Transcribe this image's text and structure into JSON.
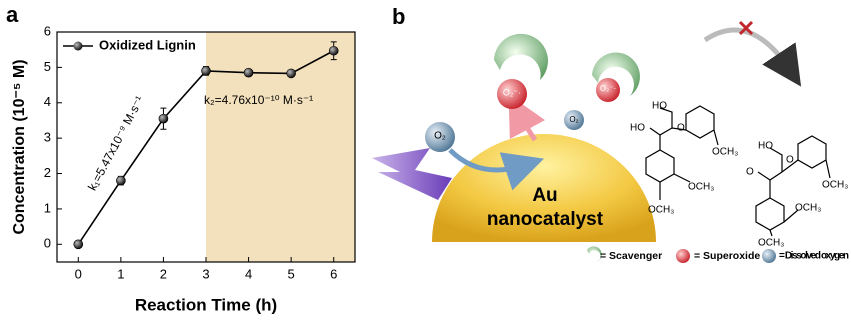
{
  "chart_data": {
    "type": "line",
    "panel_label": "a",
    "x_label": "Reaction Time (h)",
    "y_label": "Concentration (10⁻⁵ M)",
    "x": [
      0,
      1,
      2,
      3,
      4,
      5,
      6
    ],
    "series": [
      {
        "name": "Oxidized Lignin",
        "color": "#000000",
        "values": [
          0,
          1.8,
          3.55,
          4.9,
          4.85,
          4.83,
          5.47
        ],
        "errors": [
          0.05,
          0.12,
          0.3,
          0.12,
          0.05,
          0.05,
          0.25
        ]
      }
    ],
    "xlim": [
      -0.5,
      6.5
    ],
    "ylim": [
      -0.5,
      6
    ],
    "xticks": [
      0,
      1,
      2,
      3,
      4,
      5,
      6
    ],
    "yticks": [
      0,
      1,
      2,
      3,
      4,
      5,
      6
    ],
    "shaded_xrange": [
      3,
      6.5
    ],
    "shade_color": "#f3e1bd",
    "legend": "upper left",
    "annotations": [
      "k₁=5.47x10⁻⁹ M·s⁻¹",
      "k₂=4.76x10⁻¹⁰ M·s⁻¹"
    ]
  },
  "diagram": {
    "panel_label": "b",
    "au_label": "Au",
    "au_sub": "nanocatalyst",
    "oxygen_labels": [
      "O₂",
      "O₂"
    ],
    "superoxide_labels": [
      "O₂⁻·",
      "O₂⁻·"
    ],
    "molecule_1": [
      "HO",
      "HO",
      "O",
      "OCH₃",
      "OCH₃",
      "OCH₃"
    ],
    "molecule_2": [
      "HO",
      "O",
      "O",
      "OCH₃",
      "OCH₃",
      "OCH₃"
    ],
    "legend": [
      "= Scavenger",
      "= Superoxide",
      "= Dissolved oxygen"
    ]
  }
}
